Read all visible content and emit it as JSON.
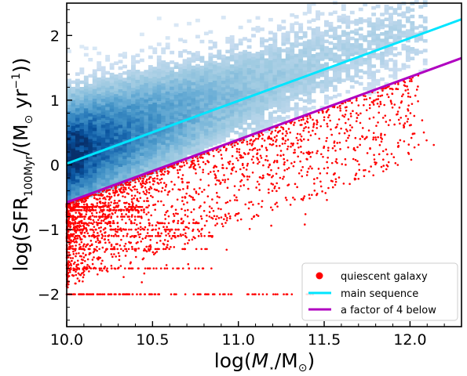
{
  "chart_data": {
    "type": "scatter",
    "xlabel": {
      "pre": "log(",
      "math": "M",
      "sub": "⋆",
      "mid": "/M",
      "sub2": "⊙",
      "post": ")"
    },
    "ylabel": {
      "pre": "log(SFR",
      "sub": "100Myr",
      "mid": "/(M",
      "sub2": "⊙",
      "mid2": " yr",
      "sup": "−1",
      "post": "))"
    },
    "xlim": [
      10.0,
      12.3
    ],
    "ylim": [
      -2.5,
      2.5
    ],
    "xticks": [
      "10.0",
      "10.5",
      "11.0",
      "11.5",
      "12.0"
    ],
    "yticks": [
      "−2",
      "−1",
      "0",
      "1",
      "2"
    ],
    "legend_position": "bottom-right",
    "series": [
      {
        "name": "quiescent galaxy",
        "kind": "scatter",
        "color": "#ff0000"
      },
      {
        "name": "main sequence",
        "kind": "line",
        "color": "#00e5ff",
        "x": [
          10.0,
          12.3
        ],
        "y": [
          0.02,
          2.25
        ]
      },
      {
        "name": "a factor of 4 below",
        "kind": "line",
        "color": "#b000c0",
        "x": [
          10.0,
          12.3
        ],
        "y": [
          -0.58,
          1.65
        ]
      }
    ],
    "density_hist": {
      "kind": "2d-histogram",
      "colormap": "Blues",
      "peak_x": 10.05,
      "peak_y": 0.2
    }
  }
}
